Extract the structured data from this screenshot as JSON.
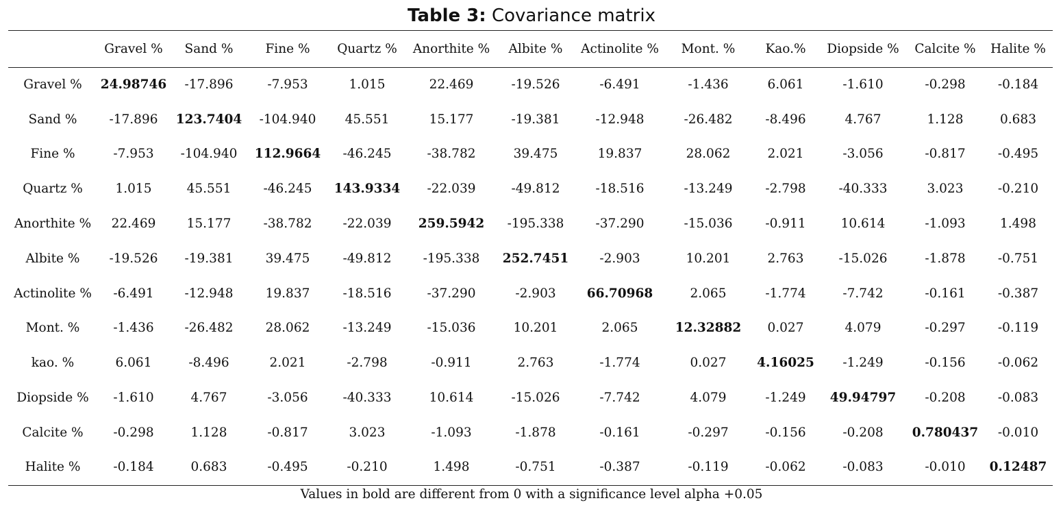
{
  "title": {
    "lead": "Table 3:",
    "rest": "Covariance matrix"
  },
  "table": {
    "headers": [
      "",
      "Gravel %",
      "Sand %",
      "Fine %",
      "Quartz %",
      "Anorthite %",
      "Albite %",
      "Actinolite %",
      "Mont. %",
      "Kao.%",
      "Diopside %",
      "Calcite %",
      "Halite %"
    ],
    "rows": [
      {
        "label": "Gravel %",
        "cells": [
          "24.98746",
          "-17.896",
          "-7.953",
          "1.015",
          "22.469",
          "-19.526",
          "-6.491",
          "-1.436",
          "6.061",
          "-1.610",
          "-0.298",
          "-0.184"
        ]
      },
      {
        "label": "Sand %",
        "cells": [
          "-17.896",
          "123.7404",
          "-104.940",
          "45.551",
          "15.177",
          "-19.381",
          "-12.948",
          "-26.482",
          "-8.496",
          "4.767",
          "1.128",
          "0.683"
        ]
      },
      {
        "label": "Fine %",
        "cells": [
          "-7.953",
          "-104.940",
          "112.9664",
          "-46.245",
          "-38.782",
          "39.475",
          "19.837",
          "28.062",
          "2.021",
          "-3.056",
          "-0.817",
          "-0.495"
        ]
      },
      {
        "label": "Quartz  %",
        "cells": [
          "1.015",
          "45.551",
          "-46.245",
          "143.9334",
          "-22.039",
          "-49.812",
          "-18.516",
          "-13.249",
          "-2.798",
          "-40.333",
          "3.023",
          "-0.210"
        ]
      },
      {
        "label": "Anorthite %",
        "cells": [
          "22.469",
          "15.177",
          "-38.782",
          "-22.039",
          "259.5942",
          "-195.338",
          "-37.290",
          "-15.036",
          "-0.911",
          "10.614",
          "-1.093",
          "1.498"
        ]
      },
      {
        "label": "Albite %",
        "cells": [
          "-19.526",
          "-19.381",
          "39.475",
          "-49.812",
          "-195.338",
          "252.7451",
          "-2.903",
          "10.201",
          "2.763",
          "-15.026",
          "-1.878",
          "-0.751"
        ]
      },
      {
        "label": "Actinolite %",
        "cells": [
          "-6.491",
          "-12.948",
          "19.837",
          "-18.516",
          "-37.290",
          "-2.903",
          "66.70968",
          "2.065",
          "-1.774",
          "-7.742",
          "-0.161",
          "-0.387"
        ]
      },
      {
        "label": "Mont. %",
        "cells": [
          "-1.436",
          "-26.482",
          "28.062",
          "-13.249",
          "-15.036",
          "10.201",
          "2.065",
          "12.32882",
          "0.027",
          "4.079",
          "-0.297",
          "-0.119"
        ]
      },
      {
        "label": "kao. %",
        "cells": [
          "6.061",
          "-8.496",
          "2.021",
          "-2.798",
          "-0.911",
          "2.763",
          "-1.774",
          "0.027",
          "4.16025",
          "-1.249",
          "-0.156",
          "-0.062"
        ]
      },
      {
        "label": "Diopside %",
        "cells": [
          "-1.610",
          "4.767",
          "-3.056",
          "-40.333",
          "10.614",
          "-15.026",
          "-7.742",
          "4.079",
          "-1.249",
          "49.94797",
          "-0.208",
          "-0.083"
        ]
      },
      {
        "label": "Calcite %",
        "cells": [
          "-0.298",
          "1.128",
          "-0.817",
          "3.023",
          "-1.093",
          "-1.878",
          "-0.161",
          "-0.297",
          "-0.156",
          "-0.208",
          "0.780437",
          "-0.010"
        ]
      },
      {
        "label": "Halite %",
        "cells": [
          "-0.184",
          "0.683",
          "-0.495",
          "-0.210",
          "1.498",
          "-0.751",
          "-0.387",
          "-0.119",
          "-0.062",
          "-0.083",
          "-0.010",
          "0.12487"
        ]
      }
    ]
  },
  "footnote": "Values in bold are different from 0 with a significance level alpha +0.05"
}
